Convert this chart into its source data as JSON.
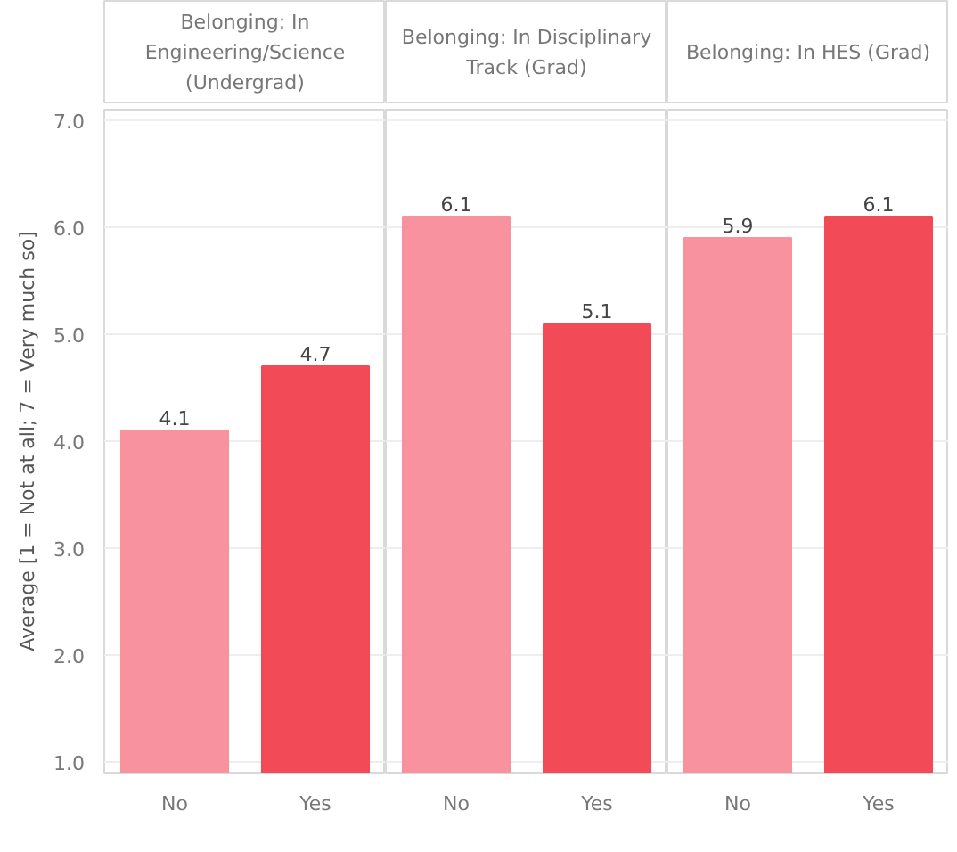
{
  "chart_data": [
    {
      "type": "bar",
      "title": "Belonging: In Engineering/Science (Undergrad)",
      "ylabel": "Average [1 = Not at all; 7 = Very much so]",
      "categories": [
        "No",
        "Yes"
      ],
      "values": [
        4.1,
        4.7
      ],
      "colors": [
        "#f7929e",
        "#f24a56"
      ],
      "ylim": [
        0.9,
        7.1
      ],
      "yticks": [
        {
          "value": 1,
          "label": "1.0"
        },
        {
          "value": 2,
          "label": "2.0"
        },
        {
          "value": 3,
          "label": "3.0"
        },
        {
          "value": 4,
          "label": "4.0"
        },
        {
          "value": 5,
          "label": "5.0"
        },
        {
          "value": 6,
          "label": "6.0"
        },
        {
          "value": 7,
          "label": "7.0"
        }
      ],
      "grid": "y",
      "data_labels": true
    },
    {
      "type": "bar",
      "title": "Belonging: In Disciplinary Track (Grad)",
      "categories": [
        "No",
        "Yes"
      ],
      "values": [
        6.1,
        5.1
      ],
      "colors": [
        "#f7929e",
        "#f24a56"
      ],
      "ylim": [
        0.9,
        7.1
      ],
      "yticks": [
        1,
        2,
        3,
        4,
        5,
        6,
        7
      ],
      "grid": "y",
      "data_labels": true,
      "tick_labels": "x"
    },
    {
      "type": "bar",
      "title": "Belonging: In HES (Grad)",
      "categories": [
        "No",
        "Yes"
      ],
      "values": [
        5.9,
        6.1
      ],
      "colors": [
        "#f7929e",
        "#f24a56"
      ],
      "ylim": [
        0.9,
        7.1
      ],
      "yticks": [
        1,
        2,
        3,
        4,
        5,
        6,
        7
      ],
      "grid": "y",
      "data_labels": true,
      "tick_labels": "x"
    }
  ]
}
